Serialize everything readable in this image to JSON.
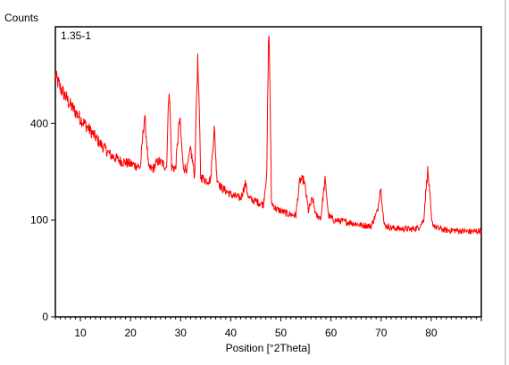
{
  "chart_data": {
    "type": "line",
    "title": "",
    "sample_label": "1.35-1",
    "ylabel": "Counts",
    "xlabel": "Position [°2Theta]",
    "xlim": [
      5,
      90
    ],
    "ylim": [
      0,
      900
    ],
    "x_ticks": [
      10,
      20,
      30,
      40,
      50,
      60,
      70,
      80
    ],
    "y_ticks": [
      0,
      100,
      400
    ],
    "y_scale": "sqrt",
    "grid": false,
    "series": [
      {
        "color": "#ff0000",
        "x": [
          5,
          6,
          7,
          8,
          9,
          10,
          12,
          14,
          16,
          18,
          20,
          22,
          22.8,
          23.6,
          24.5,
          25.5,
          26.5,
          27.2,
          27.7,
          28.2,
          29,
          29.8,
          30.5,
          31.3,
          32,
          32.8,
          33.4,
          34,
          35,
          36,
          36.7,
          37.2,
          38,
          39,
          40,
          41,
          42,
          42.9,
          43.6,
          44.5,
          45.5,
          46.5,
          47.2,
          47.6,
          48.1,
          49,
          50,
          51,
          52,
          53,
          53.8,
          54.6,
          55.5,
          56.3,
          57,
          58,
          58.8,
          59.5,
          60.5,
          62,
          64,
          66,
          68,
          69.3,
          69.9,
          70.6,
          72,
          74,
          76,
          77.5,
          78.5,
          79.3,
          80.1,
          81,
          83,
          85,
          87,
          89,
          90
        ],
        "y": [
          620,
          560,
          520,
          480,
          450,
          420,
          370,
          320,
          280,
          260,
          250,
          240,
          430,
          235,
          235,
          260,
          250,
          240,
          570,
          240,
          235,
          420,
          240,
          235,
          300,
          210,
          700,
          210,
          200,
          200,
          380,
          210,
          180,
          170,
          160,
          155,
          150,
          190,
          150,
          145,
          140,
          135,
          220,
          900,
          140,
          125,
          120,
          115,
          112,
          110,
          200,
          200,
          120,
          150,
          110,
          105,
          200,
          110,
          100,
          98,
          95,
          90,
          88,
          120,
          180,
          90,
          85,
          83,
          82,
          85,
          100,
          230,
          95,
          85,
          80,
          80,
          78,
          78,
          80
        ]
      }
    ]
  }
}
